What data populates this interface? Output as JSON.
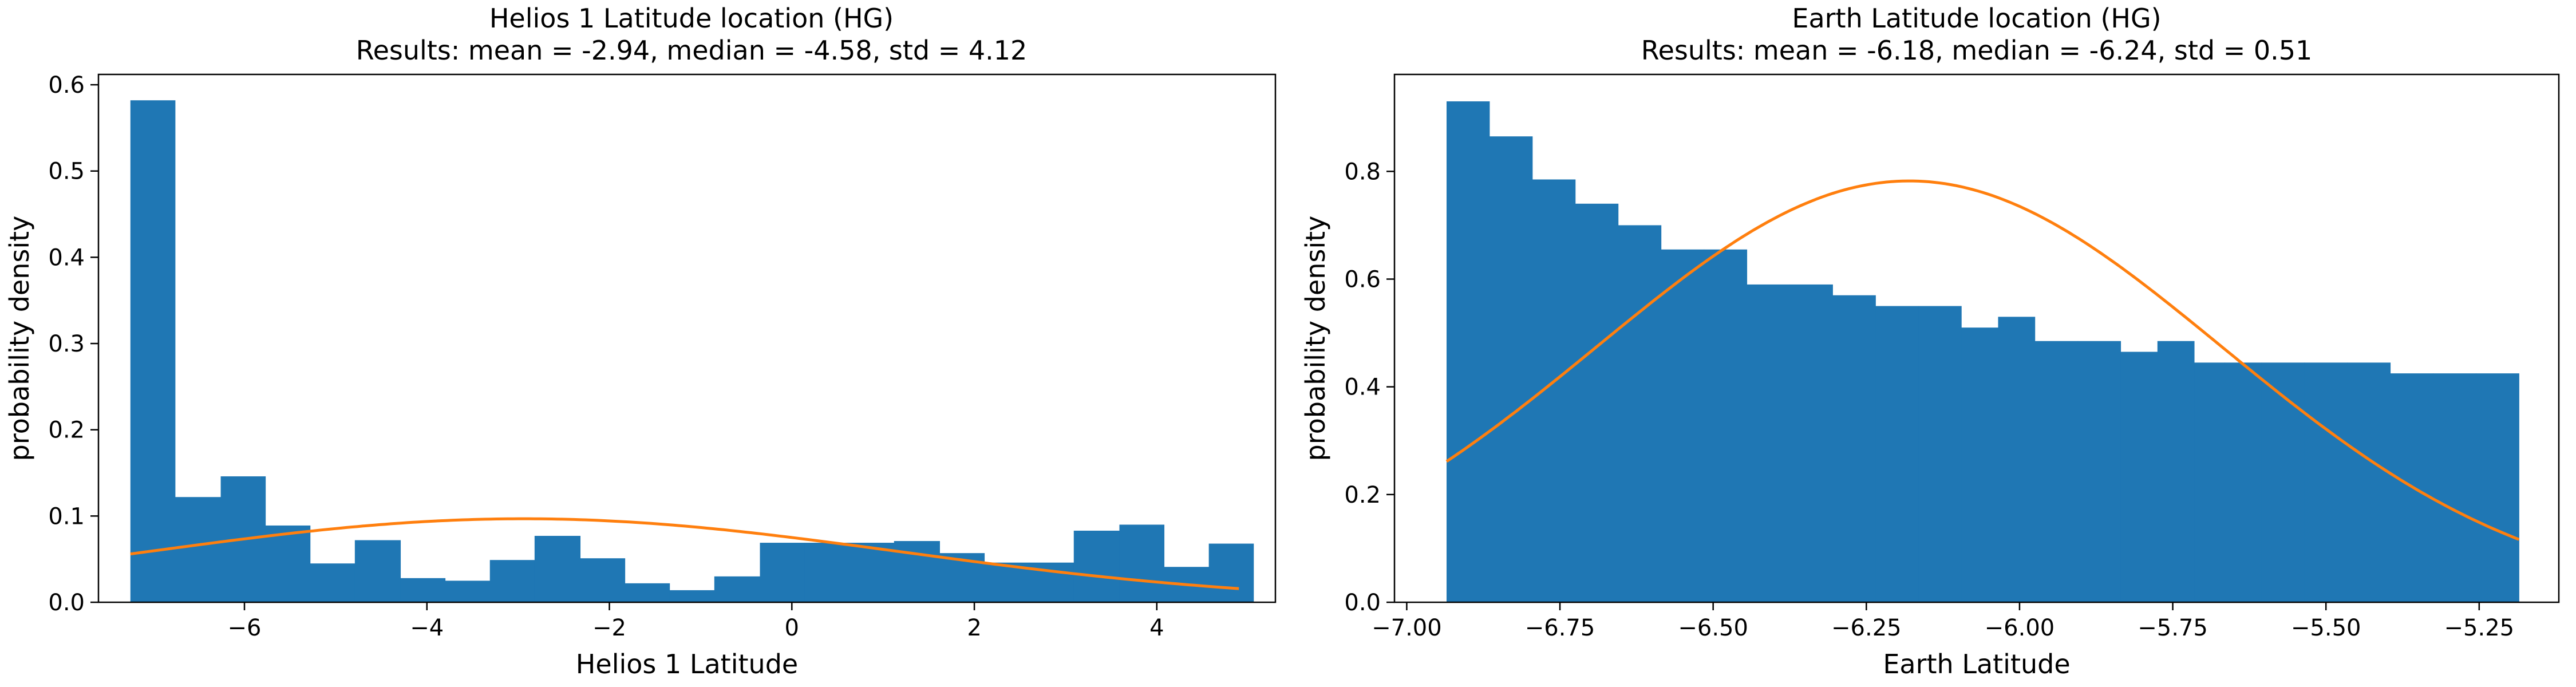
{
  "figure": {
    "background": "#ffffff"
  },
  "chart_data": [
    {
      "type": "bar",
      "title_line1": "Helios 1 Latitude location (HG)",
      "title_line2": "Results: mean = -2.94, median = -4.58, std = 4.12",
      "xlabel": "Helios 1 Latitude",
      "ylabel": "probability density",
      "xlim": [
        -7.6,
        5.3
      ],
      "ylim": [
        0,
        0.612
      ],
      "xticks": [
        -6,
        -4,
        -2,
        0,
        2,
        4
      ],
      "xtick_labels": [
        "−6",
        "−4",
        "−2",
        "0",
        "2",
        "4"
      ],
      "yticks": [
        0.0,
        0.1,
        0.2,
        0.3,
        0.4,
        0.5,
        0.6
      ],
      "ytick_labels": [
        "0.0",
        "0.1",
        "0.2",
        "0.3",
        "0.4",
        "0.5",
        "0.6"
      ],
      "bar_color": "#1f77b4",
      "line_color": "#ff7f0e",
      "bins": {
        "edges": [
          -7.25,
          -6.76,
          -6.26,
          -5.77,
          -5.28,
          -4.79,
          -4.29,
          -3.8,
          -3.31,
          -2.82,
          -2.32,
          -1.83,
          -1.34,
          -0.85,
          -0.35,
          0.14,
          0.63,
          1.12,
          1.62,
          2.11,
          2.6,
          3.09,
          3.59,
          4.08,
          4.57,
          5.06
        ],
        "density": [
          0.582,
          0.122,
          0.146,
          0.089,
          0.045,
          0.072,
          0.028,
          0.025,
          0.049,
          0.077,
          0.051,
          0.022,
          0.014,
          0.03,
          0.069,
          0.069,
          0.069,
          0.071,
          0.057,
          0.046,
          0.046,
          0.083,
          0.09,
          0.041,
          0.068
        ]
      },
      "fit_curve": {
        "label": "normal pdf",
        "mean": -2.94,
        "std": 4.12,
        "x_range": [
          -7.25,
          4.9
        ]
      }
    },
    {
      "type": "bar",
      "title_line1": "Earth Latitude location (HG)",
      "title_line2": "Results: mean = -6.18, median = -6.24, std = 0.51",
      "xlabel": "Earth Latitude",
      "ylabel": "probability density",
      "xlim": [
        -7.02,
        -5.12
      ],
      "ylim": [
        0,
        0.98
      ],
      "xticks": [
        -7.0,
        -6.75,
        -6.5,
        -6.25,
        -6.0,
        -5.75,
        -5.5,
        -5.25
      ],
      "xtick_labels": [
        "−7.00",
        "−6.75",
        "−6.50",
        "−6.25",
        "−6.00",
        "−5.75",
        "−5.50",
        "−5.25"
      ],
      "yticks": [
        0.0,
        0.2,
        0.4,
        0.6,
        0.8
      ],
      "ytick_labels": [
        "0.0",
        "0.2",
        "0.4",
        "0.6",
        "0.8"
      ],
      "bar_color": "#1f77b4",
      "line_color": "#ff7f0e",
      "bins": {
        "edges": [
          -6.935,
          -6.865,
          -6.795,
          -6.725,
          -6.655,
          -6.585,
          -6.515,
          -6.445,
          -6.375,
          -6.305,
          -6.235,
          -6.165,
          -6.095,
          -6.035,
          -5.975,
          -5.905,
          -5.835,
          -5.775,
          -5.715,
          -5.665,
          -5.605,
          -5.535,
          -5.465,
          -5.395,
          -5.325,
          -5.255,
          -5.185
        ],
        "density": [
          0.93,
          0.865,
          0.785,
          0.74,
          0.7,
          0.655,
          0.655,
          0.59,
          0.59,
          0.57,
          0.55,
          0.55,
          0.51,
          0.53,
          0.485,
          0.485,
          0.465,
          0.485,
          0.445,
          0.445,
          0.445,
          0.445,
          0.445,
          0.425,
          0.425,
          0.425
        ]
      },
      "fit_curve": {
        "label": "normal pdf",
        "mean": -6.18,
        "std": 0.51,
        "x_range": [
          -6.935,
          -5.185
        ]
      }
    }
  ]
}
